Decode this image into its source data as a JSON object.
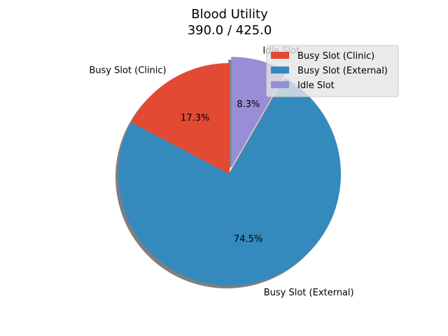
{
  "chart_data": {
    "type": "pie",
    "title": "Blood Utility",
    "subtitle": "390.0 / 425.0",
    "slices": [
      {
        "label": "Busy Slot (Clinic)",
        "value": 17.3,
        "pct_label": "17.3%",
        "color": "#e24a33",
        "explode": false
      },
      {
        "label": "Busy Slot (External)",
        "value": 74.5,
        "pct_label": "74.5%",
        "color": "#348abd",
        "explode": false
      },
      {
        "label": "Idle Slot",
        "value": 8.3,
        "pct_label": "8.3%",
        "color": "#988ed5",
        "explode": true
      }
    ],
    "start_angle_deg": 90,
    "direction": "counterclockwise",
    "shadow": true,
    "legend": {
      "placement": "top-right",
      "entries": [
        "Busy Slot (Clinic)",
        "Busy Slot (External)",
        "Idle Slot"
      ]
    }
  }
}
